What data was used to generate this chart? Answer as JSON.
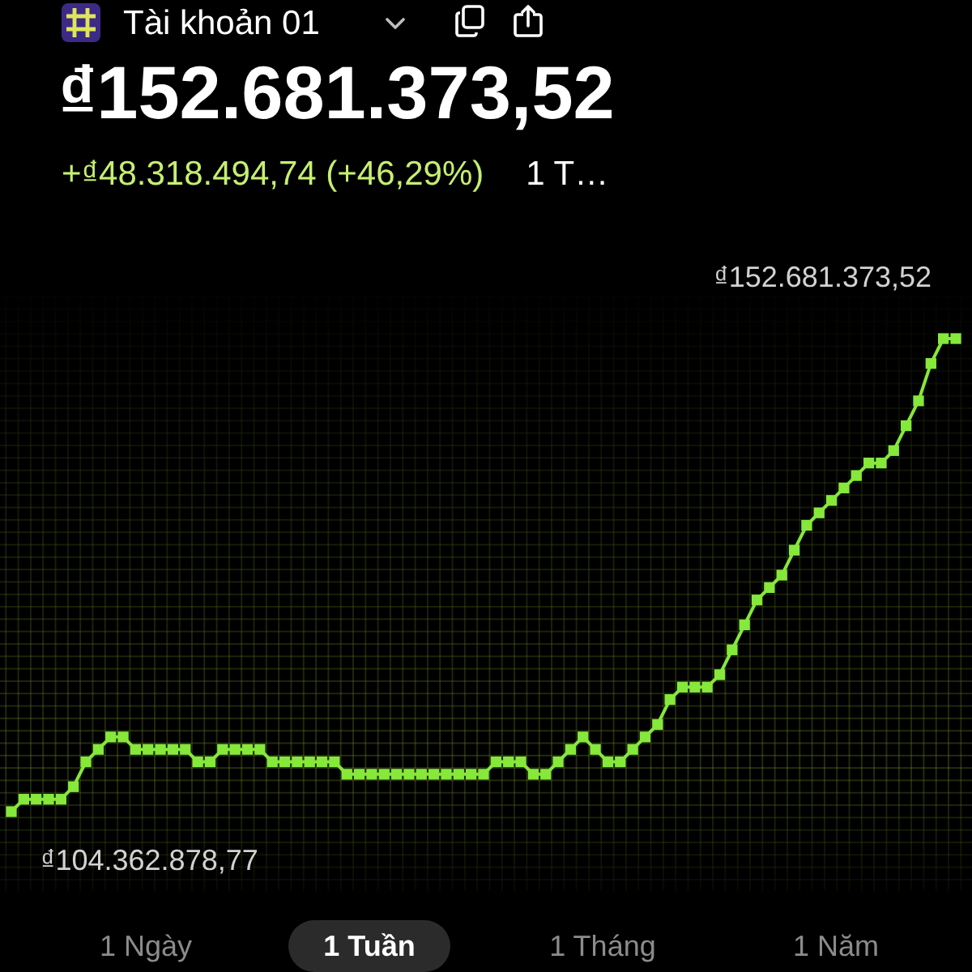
{
  "chart_data": {
    "type": "line",
    "title": "₫152.681.373,52",
    "subtitle": "+₫48.318.494,74 (+46,29%)",
    "annotations": [
      "Tài khoản 01",
      "1 T…",
      "1 Ngày",
      "1 Tuần",
      "1 Tháng",
      "1 Năm"
    ],
    "categories": [
      null,
      null,
      null,
      null,
      null,
      null,
      null,
      null,
      null,
      null,
      null,
      null,
      null,
      null,
      null,
      null,
      null,
      null,
      null,
      null,
      null,
      null,
      null,
      null,
      null,
      null,
      null,
      null,
      null,
      null,
      null,
      null,
      null,
      null,
      null,
      null,
      null,
      null,
      null,
      null,
      null,
      null,
      null,
      null,
      null,
      null,
      null,
      null,
      null,
      null,
      null,
      null,
      null,
      null,
      null,
      null,
      null,
      null,
      null,
      null,
      null,
      null,
      null,
      null,
      null,
      null,
      null,
      null,
      null,
      null,
      null,
      null,
      null,
      null,
      null,
      null,
      null
    ],
    "values": [
      104362878.77,
      105630000,
      105630000,
      105630000,
      105630000,
      106910000,
      109450000,
      110720000,
      111990000,
      111990000,
      110720000,
      110720000,
      110720000,
      110720000,
      110720000,
      109450000,
      109450000,
      110720000,
      110720000,
      110720000,
      110720000,
      109450000,
      109450000,
      109450000,
      109450000,
      109450000,
      109450000,
      108180000,
      108180000,
      108180000,
      108180000,
      108180000,
      108180000,
      108180000,
      108180000,
      108180000,
      108180000,
      108180000,
      108180000,
      109450000,
      109450000,
      109450000,
      108180000,
      108180000,
      109450000,
      110720000,
      111990000,
      110720000,
      109450000,
      109450000,
      110720000,
      111990000,
      113260000,
      115810000,
      117080000,
      117080000,
      117080000,
      118350000,
      120890000,
      123440000,
      125980000,
      127250000,
      128520000,
      131070000,
      133610000,
      134880000,
      136150000,
      137420000,
      138690000,
      139970000,
      139970000,
      141240000,
      143780000,
      146320000,
      150140000,
      152680000,
      152681373.52
    ],
    "value_labels": [
      "₫104.362.878,77",
      null,
      null,
      null,
      null,
      null,
      null,
      null,
      null,
      null,
      null,
      null,
      null,
      null,
      null,
      null,
      null,
      null,
      null,
      null,
      null,
      null,
      null,
      null,
      null,
      null,
      null,
      null,
      null,
      null,
      null,
      null,
      null,
      null,
      null,
      null,
      null,
      null,
      null,
      null,
      null,
      null,
      null,
      null,
      null,
      null,
      null,
      null,
      null,
      null,
      null,
      null,
      null,
      null,
      null,
      null,
      null,
      null,
      null,
      null,
      null,
      null,
      null,
      null,
      null,
      null,
      null,
      null,
      null,
      null,
      null,
      null,
      null,
      null,
      null,
      null,
      "₫152.681.373,52"
    ],
    "color": "#86e83a",
    "marker": "square",
    "tick_labels": false
  }
}
